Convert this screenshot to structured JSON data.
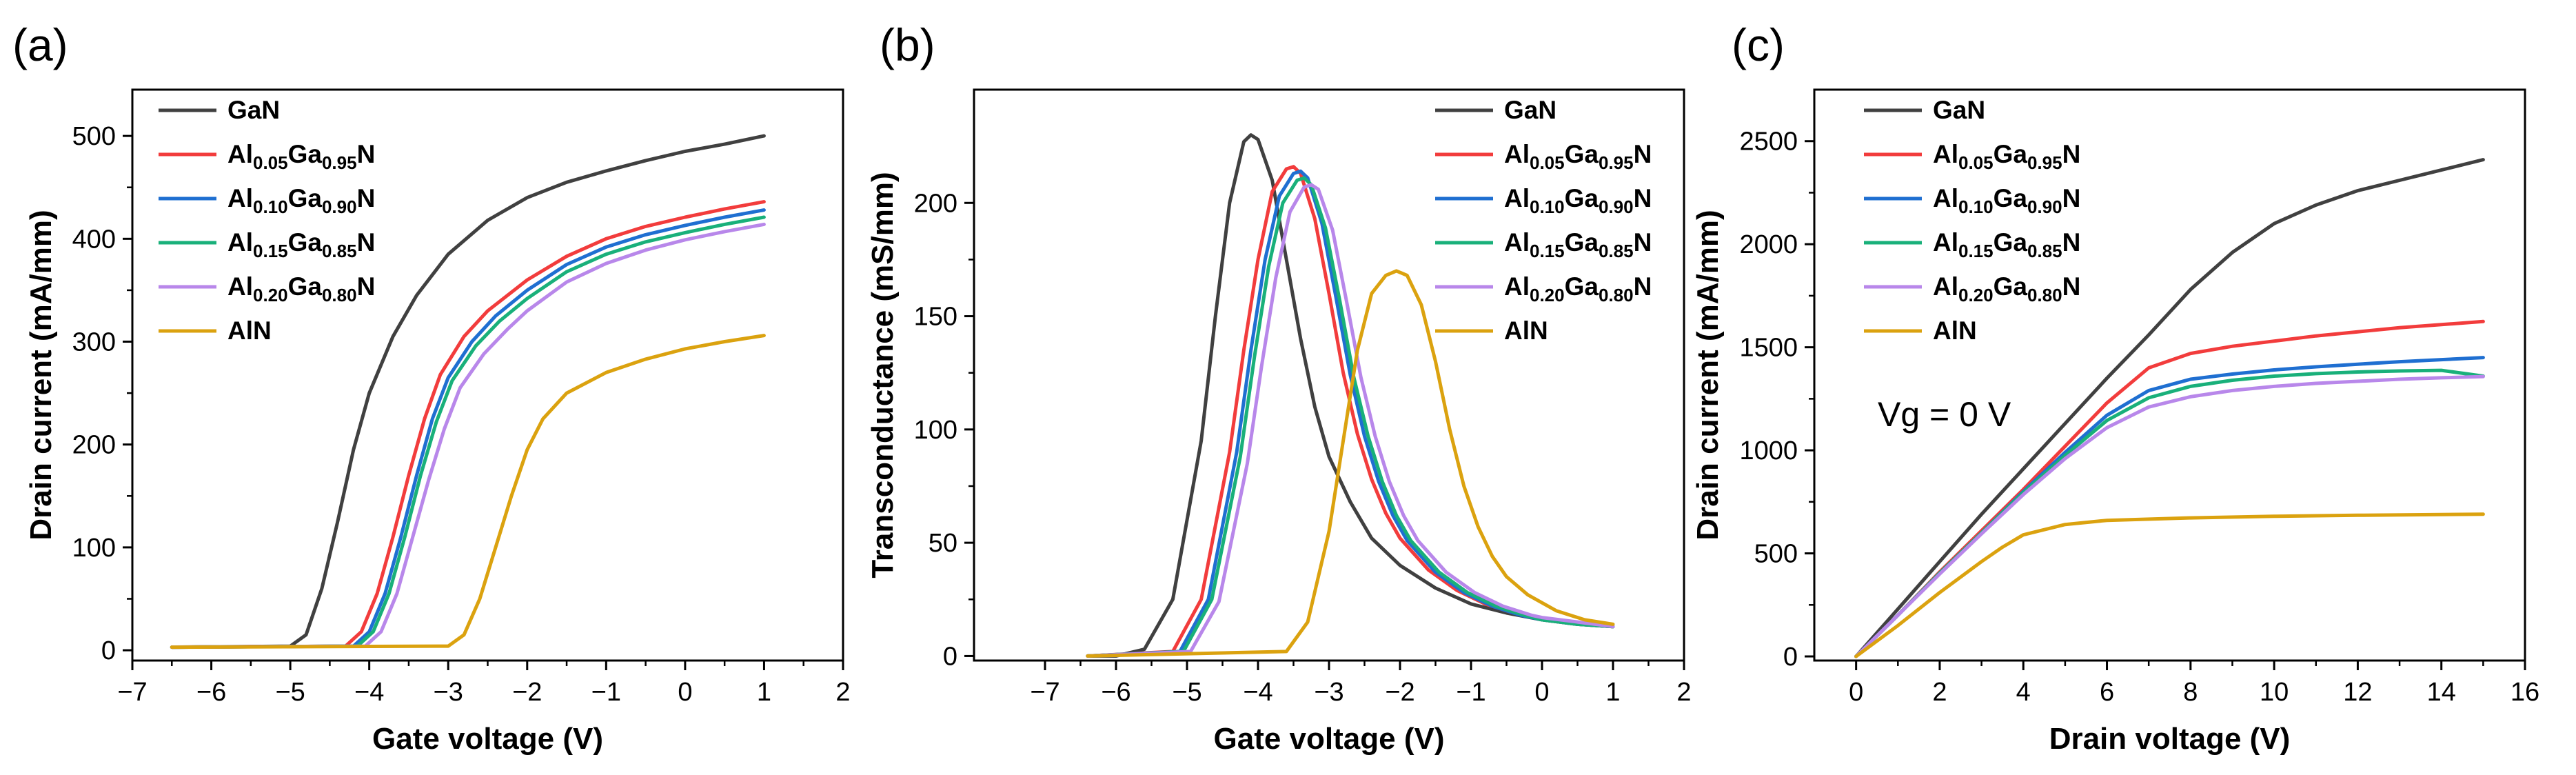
{
  "colors": {
    "GaN": "#404040",
    "Al005": "#f23c3c",
    "Al010": "#1f6fd1",
    "Al015": "#19b07a",
    "Al020": "#b887ea",
    "AlN": "#dba20f"
  },
  "legend_entries": [
    {
      "key": "GaN",
      "parts": [
        {
          "t": "GaN",
          "sub": false
        }
      ]
    },
    {
      "key": "Al005",
      "parts": [
        {
          "t": "Al",
          "sub": false
        },
        {
          "t": "0.05",
          "sub": true
        },
        {
          "t": "Ga",
          "sub": false
        },
        {
          "t": "0.95",
          "sub": true
        },
        {
          "t": "N",
          "sub": false
        }
      ]
    },
    {
      "key": "Al010",
      "parts": [
        {
          "t": "Al",
          "sub": false
        },
        {
          "t": "0.10",
          "sub": true
        },
        {
          "t": "Ga",
          "sub": false
        },
        {
          "t": "0.90",
          "sub": true
        },
        {
          "t": "N",
          "sub": false
        }
      ]
    },
    {
      "key": "Al015",
      "parts": [
        {
          "t": "Al",
          "sub": false
        },
        {
          "t": "0.15",
          "sub": true
        },
        {
          "t": "Ga",
          "sub": false
        },
        {
          "t": "0.85",
          "sub": true
        },
        {
          "t": "N",
          "sub": false
        }
      ]
    },
    {
      "key": "Al020",
      "parts": [
        {
          "t": "Al",
          "sub": false
        },
        {
          "t": "0.20",
          "sub": true
        },
        {
          "t": "Ga",
          "sub": false
        },
        {
          "t": "0.80",
          "sub": true
        },
        {
          "t": "N",
          "sub": false
        }
      ]
    },
    {
      "key": "AlN",
      "parts": [
        {
          "t": "AlN",
          "sub": false
        }
      ]
    }
  ],
  "chart_data": [
    {
      "id": "a",
      "panel_label": "(a)",
      "type": "line",
      "xlabel": "Gate voltage (V)",
      "ylabel": "Drain current (mA/mm)",
      "xlim": [
        -7,
        2
      ],
      "ylim": [
        -10,
        545
      ],
      "xticks": [
        -7,
        -6,
        -5,
        -4,
        -3,
        -2,
        -1,
        0,
        1,
        2
      ],
      "yticks": [
        0,
        100,
        200,
        300,
        400,
        500
      ],
      "legend": "top-left",
      "series": [
        {
          "name": "GaN",
          "key": "GaN",
          "x": [
            -6.5,
            -5.0,
            -4.8,
            -4.6,
            -4.4,
            -4.2,
            -4.0,
            -3.7,
            -3.4,
            -3.0,
            -2.5,
            -2.0,
            -1.5,
            -1.0,
            -0.5,
            0.0,
            0.5,
            1.0
          ],
          "y": [
            3,
            4,
            15,
            60,
            125,
            195,
            250,
            305,
            345,
            385,
            418,
            440,
            455,
            466,
            476,
            485,
            492,
            500
          ]
        },
        {
          "name": "Al0.05Ga0.95N",
          "key": "Al005",
          "x": [
            -6.5,
            -4.3,
            -4.1,
            -3.9,
            -3.7,
            -3.5,
            -3.3,
            -3.1,
            -2.8,
            -2.5,
            -2.0,
            -1.5,
            -1.0,
            -0.5,
            0.0,
            0.5,
            1.0
          ],
          "y": [
            3,
            4,
            18,
            55,
            110,
            170,
            225,
            268,
            305,
            330,
            360,
            383,
            400,
            412,
            421,
            429,
            436
          ]
        },
        {
          "name": "Al0.10Ga0.90N",
          "key": "Al010",
          "x": [
            -6.5,
            -4.2,
            -4.0,
            -3.8,
            -3.6,
            -3.4,
            -3.2,
            -3.0,
            -2.7,
            -2.4,
            -2.0,
            -1.5,
            -1.0,
            -0.5,
            0.0,
            0.5,
            1.0
          ],
          "y": [
            3,
            4,
            18,
            55,
            110,
            170,
            225,
            265,
            300,
            325,
            350,
            375,
            392,
            404,
            413,
            421,
            428
          ]
        },
        {
          "name": "Al0.15Ga0.85N",
          "key": "Al015",
          "x": [
            -6.5,
            -4.15,
            -3.95,
            -3.75,
            -3.55,
            -3.35,
            -3.15,
            -2.95,
            -2.65,
            -2.35,
            -2.0,
            -1.5,
            -1.0,
            -0.5,
            0.0,
            0.5,
            1.0
          ],
          "y": [
            3,
            4,
            18,
            55,
            110,
            170,
            222,
            262,
            296,
            320,
            342,
            368,
            385,
            397,
            406,
            414,
            421
          ]
        },
        {
          "name": "Al0.20Ga0.80N",
          "key": "Al020",
          "x": [
            -6.5,
            -4.05,
            -3.85,
            -3.65,
            -3.45,
            -3.25,
            -3.05,
            -2.85,
            -2.55,
            -2.25,
            -2.0,
            -1.5,
            -1.0,
            -0.5,
            0.0,
            0.5,
            1.0
          ],
          "y": [
            3,
            4,
            18,
            55,
            110,
            165,
            215,
            255,
            288,
            312,
            330,
            358,
            376,
            389,
            399,
            407,
            414
          ]
        },
        {
          "name": "AlN",
          "key": "AlN",
          "x": [
            -6.5,
            -3.0,
            -2.8,
            -2.6,
            -2.4,
            -2.2,
            -2.0,
            -1.8,
            -1.5,
            -1.0,
            -0.5,
            0.0,
            0.5,
            1.0
          ],
          "y": [
            3,
            4,
            15,
            50,
            100,
            150,
            195,
            225,
            250,
            270,
            283,
            293,
            300,
            306
          ]
        }
      ]
    },
    {
      "id": "b",
      "panel_label": "(b)",
      "type": "line",
      "xlabel": "Gate voltage (V)",
      "ylabel": "Transconductance (mS/mm)",
      "xlim": [
        -8,
        2
      ],
      "ylim": [
        -2,
        250
      ],
      "xticks": [
        -7,
        -6,
        -5,
        -4,
        -3,
        -2,
        -1,
        0,
        1,
        2
      ],
      "yticks": [
        0,
        50,
        100,
        150,
        200
      ],
      "legend": "top-right",
      "series": [
        {
          "name": "GaN",
          "key": "GaN",
          "x": [
            -6.4,
            -6.0,
            -5.6,
            -5.2,
            -4.8,
            -4.6,
            -4.4,
            -4.2,
            -4.1,
            -4.0,
            -3.8,
            -3.6,
            -3.4,
            -3.2,
            -3.0,
            -2.7,
            -2.4,
            -2.0,
            -1.5,
            -1.0,
            -0.5,
            0.0,
            0.5,
            1.0
          ],
          "y": [
            0,
            0,
            3,
            25,
            95,
            150,
            200,
            227,
            230,
            228,
            210,
            175,
            140,
            110,
            88,
            68,
            52,
            40,
            30,
            23,
            19,
            16,
            14,
            13
          ]
        },
        {
          "name": "Al0.05Ga0.95N",
          "key": "Al005",
          "x": [
            -6.4,
            -5.2,
            -4.8,
            -4.4,
            -4.2,
            -4.0,
            -3.8,
            -3.6,
            -3.5,
            -3.4,
            -3.2,
            -3.0,
            -2.8,
            -2.6,
            -2.4,
            -2.2,
            -2.0,
            -1.6,
            -1.2,
            -0.8,
            -0.4,
            0.0,
            0.5,
            1.0
          ],
          "y": [
            0,
            2,
            25,
            90,
            135,
            175,
            205,
            215,
            216,
            213,
            193,
            160,
            125,
            98,
            78,
            63,
            52,
            38,
            29,
            23,
            19,
            16,
            14,
            13
          ]
        },
        {
          "name": "Al0.10Ga0.90N",
          "key": "Al010",
          "x": [
            -6.4,
            -5.1,
            -4.7,
            -4.3,
            -4.1,
            -3.9,
            -3.7,
            -3.5,
            -3.4,
            -3.3,
            -3.1,
            -2.9,
            -2.7,
            -2.5,
            -2.3,
            -2.1,
            -1.9,
            -1.5,
            -1.1,
            -0.7,
            -0.3,
            0.0,
            0.5,
            1.0
          ],
          "y": [
            0,
            2,
            25,
            90,
            135,
            175,
            203,
            213,
            214,
            211,
            191,
            158,
            124,
            97,
            77,
            62,
            51,
            37,
            28,
            22,
            18,
            16,
            14,
            13
          ]
        },
        {
          "name": "Al0.15Ga0.85N",
          "key": "Al015",
          "x": [
            -6.4,
            -5.05,
            -4.65,
            -4.25,
            -4.05,
            -3.85,
            -3.65,
            -3.45,
            -3.35,
            -3.25,
            -3.05,
            -2.85,
            -2.65,
            -2.45,
            -2.25,
            -2.05,
            -1.85,
            -1.45,
            -1.05,
            -0.65,
            -0.25,
            0.0,
            0.5,
            1.0
          ],
          "y": [
            0,
            2,
            25,
            88,
            132,
            172,
            200,
            210,
            211,
            208,
            189,
            157,
            123,
            97,
            77,
            62,
            51,
            37,
            28,
            22,
            18,
            16,
            14,
            13
          ]
        },
        {
          "name": "Al0.20Ga0.80N",
          "key": "Al020",
          "x": [
            -6.4,
            -4.95,
            -4.55,
            -4.15,
            -3.95,
            -3.75,
            -3.55,
            -3.35,
            -3.25,
            -3.15,
            -2.95,
            -2.75,
            -2.55,
            -2.35,
            -2.15,
            -1.95,
            -1.75,
            -1.35,
            -0.95,
            -0.55,
            -0.15,
            0.0,
            0.5,
            1.0
          ],
          "y": [
            0,
            2,
            24,
            85,
            128,
            167,
            196,
            207,
            208,
            206,
            188,
            156,
            123,
            97,
            77,
            62,
            51,
            37,
            28,
            22,
            18,
            17,
            15,
            13
          ]
        },
        {
          "name": "AlN",
          "key": "AlN",
          "x": [
            -6.4,
            -3.6,
            -3.3,
            -3.0,
            -2.8,
            -2.6,
            -2.4,
            -2.2,
            -2.05,
            -1.9,
            -1.7,
            -1.5,
            -1.3,
            -1.1,
            -0.9,
            -0.7,
            -0.5,
            -0.2,
            0.2,
            0.6,
            1.0
          ],
          "y": [
            0,
            2,
            15,
            55,
            95,
            135,
            160,
            168,
            170,
            168,
            155,
            130,
            100,
            75,
            57,
            44,
            35,
            27,
            20,
            16,
            14
          ]
        }
      ]
    },
    {
      "id": "c",
      "panel_label": "(c)",
      "type": "line",
      "xlabel": "Drain voltage (V)",
      "ylabel": "Drain current (mA/mm)",
      "xlim": [
        -1,
        16
      ],
      "ylim": [
        -20,
        2750
      ],
      "xticks": [
        0,
        2,
        4,
        6,
        8,
        10,
        12,
        14,
        16
      ],
      "yticks": [
        0,
        500,
        1000,
        1500,
        2000,
        2500
      ],
      "legend": "top-left",
      "annotation": "Vg = 0 V",
      "series": [
        {
          "name": "GaN",
          "key": "GaN",
          "x": [
            0,
            1,
            2,
            3,
            4,
            5,
            6,
            7,
            8,
            9,
            10,
            11,
            12,
            13,
            14,
            15
          ],
          "y": [
            0,
            230,
            460,
            690,
            910,
            1130,
            1350,
            1560,
            1780,
            1960,
            2100,
            2190,
            2260,
            2310,
            2360,
            2410
          ]
        },
        {
          "name": "Al0.05Ga0.95N",
          "key": "Al005",
          "x": [
            0,
            1,
            2,
            3,
            4,
            5,
            6,
            7,
            8,
            9,
            10,
            11,
            12,
            13,
            14,
            15
          ],
          "y": [
            0,
            200,
            410,
            610,
            810,
            1020,
            1230,
            1400,
            1470,
            1505,
            1530,
            1555,
            1575,
            1595,
            1610,
            1625
          ]
        },
        {
          "name": "Al0.10Ga0.90N",
          "key": "Al010",
          "x": [
            0,
            1,
            2,
            3,
            4,
            5,
            6,
            7,
            8,
            9,
            10,
            11,
            12,
            13,
            14,
            15
          ],
          "y": [
            0,
            200,
            405,
            600,
            800,
            990,
            1170,
            1290,
            1345,
            1370,
            1390,
            1405,
            1418,
            1430,
            1440,
            1450
          ]
        },
        {
          "name": "Al0.15Ga0.85N",
          "key": "Al015",
          "x": [
            0,
            1,
            2,
            3,
            4,
            5,
            6,
            7,
            8,
            9,
            10,
            11,
            12,
            13,
            14,
            15
          ],
          "y": [
            0,
            200,
            405,
            600,
            795,
            975,
            1145,
            1255,
            1310,
            1340,
            1360,
            1372,
            1380,
            1385,
            1388,
            1360
          ]
        },
        {
          "name": "Al0.20Ga0.80N",
          "key": "Al020",
          "x": [
            0,
            1,
            2,
            3,
            4,
            5,
            6,
            7,
            8,
            9,
            10,
            11,
            12,
            13,
            14,
            15
          ],
          "y": [
            0,
            200,
            400,
            595,
            785,
            960,
            1110,
            1210,
            1260,
            1290,
            1310,
            1325,
            1335,
            1345,
            1352,
            1358
          ]
        },
        {
          "name": "AlN",
          "key": "AlN",
          "x": [
            0,
            1,
            2,
            3,
            3.5,
            4,
            5,
            6,
            8,
            10,
            12,
            15
          ],
          "y": [
            0,
            150,
            310,
            460,
            530,
            590,
            640,
            660,
            672,
            680,
            685,
            690
          ]
        }
      ]
    }
  ]
}
